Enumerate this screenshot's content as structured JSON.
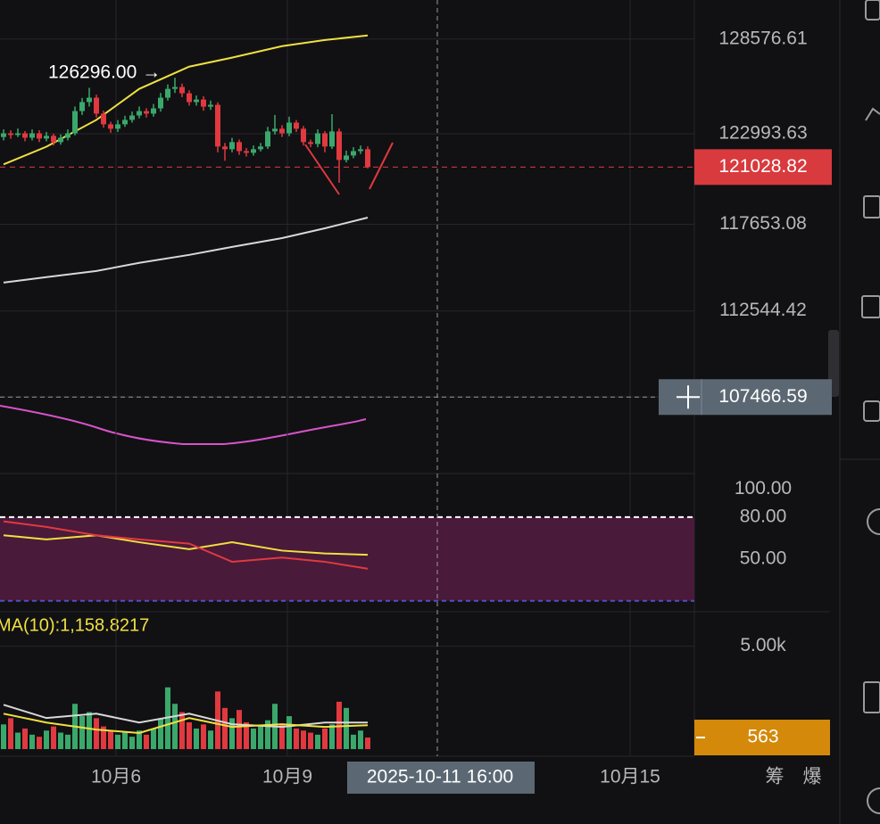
{
  "chart_data": {
    "type": "candlestick",
    "up_color": "#3aa86b",
    "down_color": "#e0393f",
    "candles": [
      [
        122800,
        123250,
        122600,
        123020
      ],
      [
        123020,
        123200,
        122700,
        122920
      ],
      [
        122920,
        123300,
        122800,
        123020
      ],
      [
        123020,
        123150,
        122550,
        122760
      ],
      [
        122760,
        123250,
        122600,
        123020
      ],
      [
        123020,
        123200,
        122500,
        122710
      ],
      [
        122710,
        123100,
        122550,
        122870
      ],
      [
        122870,
        123000,
        122300,
        122500
      ],
      [
        122500,
        122950,
        122350,
        122760
      ],
      [
        122760,
        123250,
        122600,
        123020
      ],
      [
        123020,
        124600,
        122900,
        124330
      ],
      [
        124330,
        125100,
        124100,
        124860
      ],
      [
        124860,
        125700,
        124600,
        125120
      ],
      [
        125120,
        125300,
        123950,
        124180
      ],
      [
        124180,
        124350,
        123350,
        123550
      ],
      [
        123550,
        123700,
        123050,
        123290
      ],
      [
        123290,
        123800,
        123100,
        123550
      ],
      [
        123550,
        124050,
        123400,
        123810
      ],
      [
        123810,
        124300,
        123650,
        124070
      ],
      [
        124070,
        124600,
        123900,
        124330
      ],
      [
        124330,
        124500,
        123950,
        124180
      ],
      [
        124180,
        124750,
        124000,
        124490
      ],
      [
        124490,
        125400,
        124300,
        125120
      ],
      [
        125120,
        125900,
        124950,
        125640
      ],
      [
        125640,
        126296,
        125400,
        125750
      ],
      [
        125750,
        125950,
        125150,
        125380
      ],
      [
        125380,
        125550,
        124650,
        124860
      ],
      [
        124860,
        125250,
        124650,
        125010
      ],
      [
        125010,
        125200,
        124350,
        124590
      ],
      [
        124590,
        124950,
        124400,
        124700
      ],
      [
        124700,
        124850,
        121900,
        122240
      ],
      [
        122240,
        122450,
        121400,
        122080
      ],
      [
        122080,
        122750,
        121900,
        122500
      ],
      [
        122500,
        122650,
        121750,
        121970
      ],
      [
        121970,
        122150,
        121650,
        121870
      ],
      [
        121870,
        122300,
        121700,
        122080
      ],
      [
        122080,
        122450,
        121950,
        122240
      ],
      [
        122240,
        123400,
        122100,
        123130
      ],
      [
        123130,
        124100,
        122950,
        123290
      ],
      [
        123290,
        123500,
        122800,
        123020
      ],
      [
        123020,
        124000,
        122850,
        123650
      ],
      [
        123650,
        123800,
        123100,
        123290
      ],
      [
        123290,
        123450,
        122300,
        122500
      ],
      [
        122500,
        122650,
        122200,
        122390
      ],
      [
        122390,
        123250,
        122200,
        123020
      ],
      [
        123020,
        123150,
        121900,
        122240
      ],
      [
        122240,
        124150,
        122100,
        123130
      ],
      [
        123130,
        123300,
        120100,
        121450
      ],
      [
        121450,
        122000,
        121300,
        121710
      ],
      [
        121710,
        122200,
        121550,
        121970
      ],
      [
        121970,
        122300,
        121800,
        122080
      ],
      [
        122080,
        122250,
        120950,
        121028.82
      ]
    ],
    "ylim": [
      107480,
      130880
    ],
    "yticks": [
      128576.61,
      122993.63,
      117653.08,
      112544.42
    ],
    "annotation": "126296.00 →",
    "crosshair": {
      "price": 107466.59,
      "time": "2025-10-11 16:00",
      "x": 60.75
    },
    "xticks": [
      {
        "value": 15.75,
        "label": "10月6"
      },
      {
        "value": 39.75,
        "label": "10月9"
      },
      {
        "value": 87.75,
        "label": "10月15"
      }
    ],
    "line_x": [
      0,
      6,
      13,
      19,
      26,
      32,
      39,
      45,
      51
    ],
    "ma_series": [
      {
        "color": "#f0e040",
        "values": [
          121190,
          122230,
          123810,
          125640,
          126950,
          127480,
          128160,
          128520,
          128790
        ]
      },
      {
        "color": "#d8d8d8",
        "values": [
          114220,
          114540,
          114900,
          115380,
          115850,
          116320,
          116840,
          117420,
          118050
        ]
      }
    ],
    "rsi": {
      "ylim": [
        0,
        110
      ],
      "yticks": [
        {
          "value": 100,
          "label": "100.00"
        },
        {
          "value": 80,
          "label": "80.00"
        },
        {
          "value": 50,
          "label": "50.00"
        }
      ],
      "band": [
        20,
        80
      ],
      "series": [
        {
          "color": "#f0e040",
          "values": [
            67,
            64,
            67,
            62,
            57,
            62,
            56,
            54,
            53
          ]
        },
        {
          "color": "#e0393f",
          "values": [
            77,
            73,
            67,
            64,
            61,
            48,
            51,
            48,
            43
          ]
        }
      ]
    },
    "volume": {
      "ylim": [
        0,
        6500
      ],
      "yticks": [
        {
          "value": 5000,
          "label": "5.00k"
        }
      ],
      "ma_label": "MA(10):1,158.8217",
      "values": [
        1200,
        1500,
        800,
        1000,
        700,
        600,
        900,
        1100,
        800,
        700,
        2200,
        1600,
        1800,
        1500,
        1100,
        900,
        700,
        800,
        600,
        900,
        700,
        1000,
        1500,
        3000,
        2200,
        1800,
        1300,
        1000,
        1200,
        900,
        2800,
        2000,
        1500,
        1900,
        1300,
        1000,
        1100,
        1400,
        2200,
        1200,
        1600,
        1000,
        900,
        800,
        700,
        1000,
        1200,
        2300,
        2000,
        700,
        900,
        563
      ],
      "series": [
        {
          "color": "#d8d8d8",
          "values": [
            2155,
            1510,
            1720,
            1290,
            1720,
            1210,
            1080,
            1290,
            1290
          ]
        },
        {
          "color": "#f0e040",
          "values": [
            1720,
            1290,
            950,
            780,
            1510,
            1080,
            1210,
            1080,
            1158.8217
          ]
        }
      ]
    },
    "toolbar_tabs": [
      "筹",
      "爆"
    ]
  }
}
